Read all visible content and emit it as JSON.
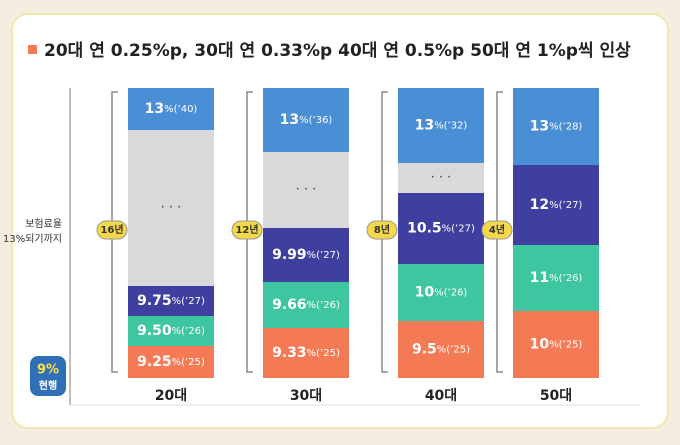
{
  "title": "20대 연 0.25%p, 30대 연 0.33%p 40대 연 0.5%p 50대 연 1%p씩 인상",
  "side_label": [
    "보험료율",
    "13%되기까지"
  ],
  "current": {
    "value": "9%",
    "label": "현행"
  },
  "columns": [
    {
      "age": "20대",
      "years": "16년",
      "segments": [
        {
          "value": "13",
          "note": "%(’40)"
        },
        {
          "ellipsis": "· · ·"
        },
        {
          "value": "9.75",
          "note": "%(’27)"
        },
        {
          "value": "9.50",
          "note": "%(’26)"
        },
        {
          "value": "9.25",
          "note": "%(’25)"
        }
      ]
    },
    {
      "age": "30대",
      "years": "12년",
      "segments": [
        {
          "value": "13",
          "note": "%(’36)"
        },
        {
          "ellipsis": "· · ·"
        },
        {
          "value": "9.99",
          "note": "%(’27)"
        },
        {
          "value": "9.66",
          "note": "%(’26)"
        },
        {
          "value": "9.33",
          "note": "%(’25)"
        }
      ]
    },
    {
      "age": "40대",
      "years": "8년",
      "segments": [
        {
          "value": "13",
          "note": "%(’32)"
        },
        {
          "ellipsis": "· · ·"
        },
        {
          "value": "10.5",
          "note": "%(’27)"
        },
        {
          "value": "10",
          "note": "%(’26)"
        },
        {
          "value": "9.5",
          "note": "%(’25)"
        }
      ]
    },
    {
      "age": "50대",
      "years": "4년",
      "segments": [
        {
          "value": "13",
          "note": "%(’28)"
        },
        {
          "value": "12",
          "note": "%(’27)"
        },
        {
          "value": "11",
          "note": "%(’26)"
        },
        {
          "value": "10",
          "note": "%(’25)"
        }
      ]
    }
  ]
}
